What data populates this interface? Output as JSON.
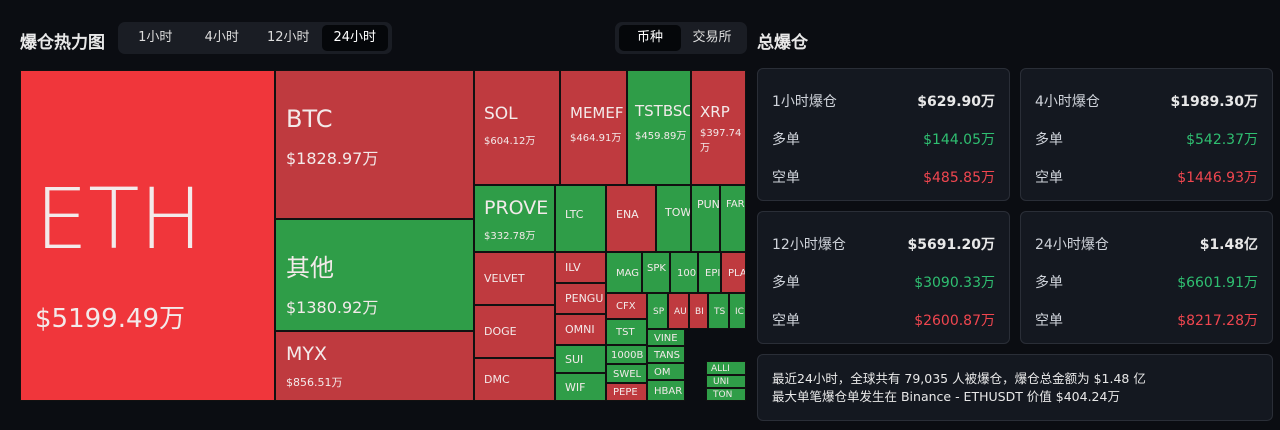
{
  "header": {
    "title": "爆仓热力图",
    "tabs": [
      "1小时",
      "4小时",
      "12小时",
      "24小时"
    ],
    "toggle": [
      "币种",
      "交易所"
    ],
    "summary_title": "总爆仓"
  },
  "treemap": {
    "cells": [
      {
        "label": "ETH",
        "value": "$5199.49万"
      },
      {
        "label": "BTC",
        "value": "$1828.97万"
      },
      {
        "label": "其他",
        "value": "$1380.92万"
      },
      {
        "label": "MYX",
        "value": "$856.51万"
      },
      {
        "label": "SOL",
        "value": "$604.12万"
      },
      {
        "label": "MEMEF",
        "value": "$464.91万"
      },
      {
        "label": "TSTBSC",
        "value": "$459.89万"
      },
      {
        "label": "XRP",
        "value": "$397.74万"
      },
      {
        "label": "PROVE",
        "value": "$332.78万"
      },
      {
        "label": "LTC"
      },
      {
        "label": "ENA"
      },
      {
        "label": "TOWN"
      },
      {
        "label": "PUN"
      },
      {
        "label": "FAR"
      },
      {
        "label": "VELVET"
      },
      {
        "label": "DOGE"
      },
      {
        "label": "DMC"
      },
      {
        "label": "ILV"
      },
      {
        "label": "PENGU"
      },
      {
        "label": "OMNI"
      },
      {
        "label": "SUI"
      },
      {
        "label": "WIF"
      },
      {
        "label": "MAG"
      },
      {
        "label": "SPK"
      },
      {
        "label": "100"
      },
      {
        "label": "EPI"
      },
      {
        "label": "PLA"
      },
      {
        "label": "CFX"
      },
      {
        "label": "TST"
      },
      {
        "label": "1000B"
      },
      {
        "label": "SWEL"
      },
      {
        "label": "PEPE"
      },
      {
        "label": "SP"
      },
      {
        "label": "AU"
      },
      {
        "label": "BI"
      },
      {
        "label": "TS"
      },
      {
        "label": "IC"
      },
      {
        "label": "VINE"
      },
      {
        "label": "TANS"
      },
      {
        "label": "OM"
      },
      {
        "label": "HBAR"
      },
      {
        "label": "ALLI"
      },
      {
        "label": "UNI"
      },
      {
        "label": "TON"
      }
    ]
  },
  "cards": [
    {
      "title": "1小时爆仓",
      "total": "$629.90万",
      "long_label": "多单",
      "long": "$144.05万",
      "short_label": "空单",
      "short": "$485.85万"
    },
    {
      "title": "4小时爆仓",
      "total": "$1989.30万",
      "long_label": "多单",
      "long": "$542.37万",
      "short_label": "空单",
      "short": "$1446.93万"
    },
    {
      "title": "12小时爆仓",
      "total": "$5691.20万",
      "long_label": "多单",
      "long": "$3090.33万",
      "short_label": "空单",
      "short": "$2600.87万"
    },
    {
      "title": "24小时爆仓",
      "total": "$1.48亿",
      "long_label": "多单",
      "long": "$6601.91万",
      "short_label": "空单",
      "short": "$8217.28万"
    }
  ],
  "summary": [
    "最近24小时，全球共有 79,035 人被爆仓，爆仓总金额为 $1.48 亿",
    "最大单笔爆仓单发生在 Binance - ETHUSDT 价值 $404.24万"
  ]
}
